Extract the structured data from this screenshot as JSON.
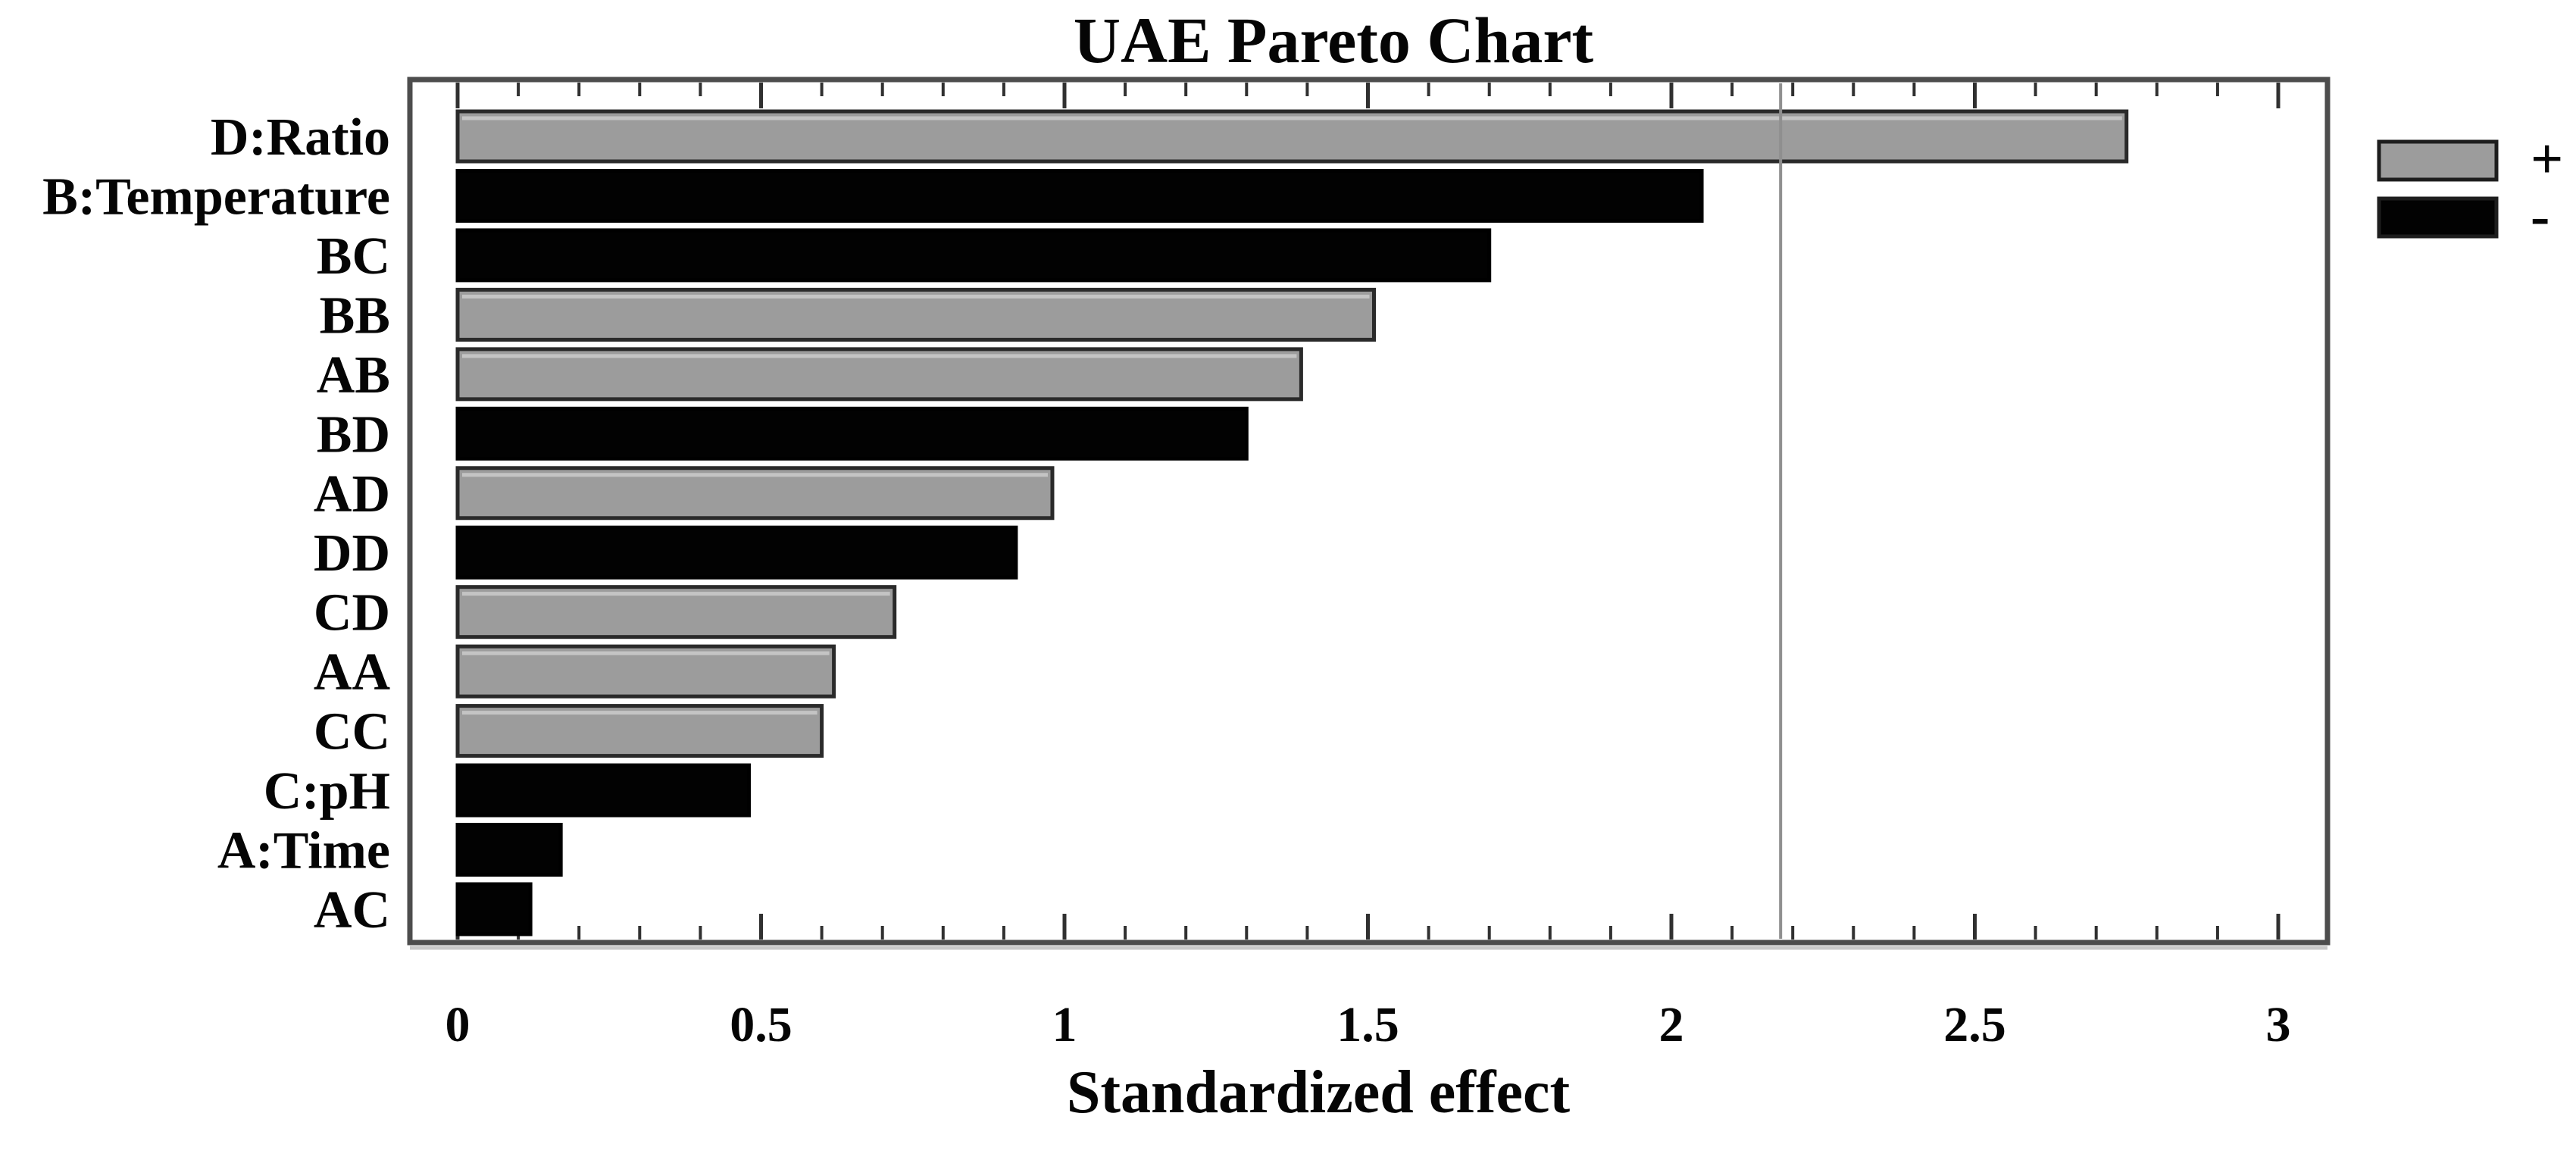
{
  "chart_data": {
    "type": "bar",
    "orientation": "horizontal",
    "title": "UAE Pareto Chart",
    "xlabel": "Standardized effect",
    "categories": [
      "D:Ratio",
      "B:Temperature",
      "BC",
      "BB",
      "AB",
      "BD",
      "AD",
      "DD",
      "CD",
      "AA",
      "CC",
      "C:pH",
      "A:Time",
      "AC"
    ],
    "values": [
      2.75,
      2.05,
      1.7,
      1.51,
      1.39,
      1.3,
      0.98,
      0.92,
      0.72,
      0.62,
      0.6,
      0.48,
      0.17,
      0.12
    ],
    "signs": [
      "+",
      "-",
      "-",
      "+",
      "+",
      "-",
      "+",
      "-",
      "+",
      "+",
      "+",
      "-",
      "-",
      "-"
    ],
    "xlim": [
      0,
      3
    ],
    "xticks": [
      0,
      0.5,
      1,
      1.5,
      2,
      2.5,
      3
    ],
    "xtick_labels": [
      "0",
      "0.5",
      "1",
      "1.5",
      "2",
      "2.5",
      "3"
    ],
    "minor_tick_step": 0.1,
    "reference_line_value": 2.18,
    "grid": false,
    "legend": {
      "position": "top-right",
      "entries": [
        {
          "symbol": "+",
          "label": "positive effect",
          "color": "#9c9c9c"
        },
        {
          "symbol": "-",
          "label": "negative effect",
          "color": "#020202"
        }
      ]
    },
    "colors": {
      "positive_bar": "#9c9c9c",
      "negative_bar": "#020202",
      "bar_border": "#2a2a2a",
      "frame": "#4d4d4d",
      "tick": "#303030",
      "reference_line": "#8f8f8f",
      "text": "#050505",
      "background": "#ffffff"
    }
  }
}
